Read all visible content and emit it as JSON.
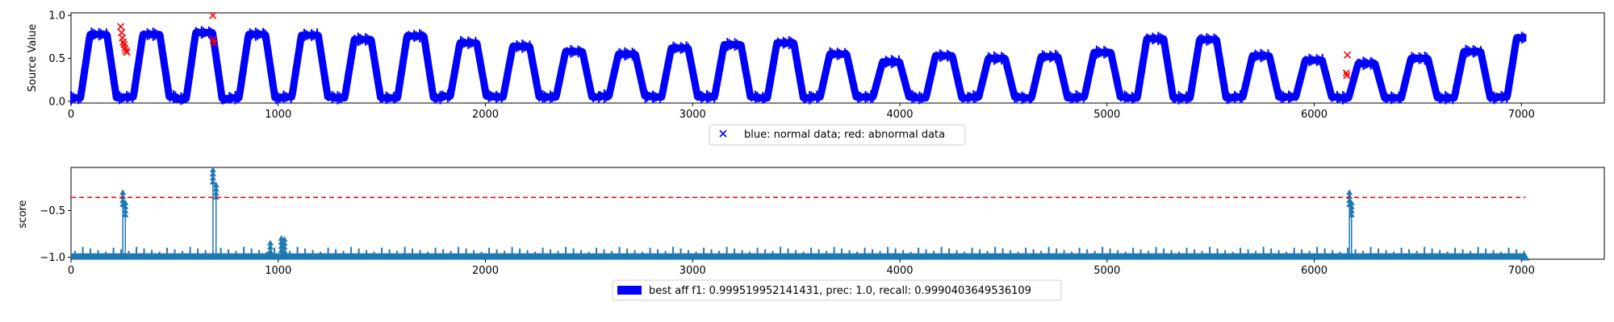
{
  "chart_data": [
    {
      "type": "scatter",
      "ylabel": "Source Value",
      "xlim": [
        0,
        7400
      ],
      "ylim": [
        -0.02,
        1.03
      ],
      "x_ticks": [
        0,
        1000,
        2000,
        3000,
        4000,
        5000,
        6000,
        7000
      ],
      "x_tick_labels": [
        "0",
        "1000",
        "2000",
        "3000",
        "4000",
        "5000",
        "6000",
        "7000"
      ],
      "y_ticks": [
        0.0,
        0.5,
        1.0
      ],
      "y_tick_labels": [
        "0.0",
        "0.5",
        "1.0"
      ],
      "legend": {
        "label": "blue: normal data; red: abnormal data",
        "placement": "below-center"
      },
      "series": [
        {
          "marker": "x",
          "color": "#0000ff",
          "period": 255,
          "x_range": [
            0,
            7020
          ],
          "cycles": [
            {
              "peak": 0.78,
              "low": 0.04
            },
            {
              "peak": 0.78,
              "low": 0.05
            },
            {
              "peak": 0.8,
              "low": 0.03
            },
            {
              "peak": 0.78,
              "low": 0.04
            },
            {
              "peak": 0.77,
              "low": 0.05
            },
            {
              "peak": 0.72,
              "low": 0.04
            },
            {
              "peak": 0.76,
              "low": 0.04
            },
            {
              "peak": 0.68,
              "low": 0.06
            },
            {
              "peak": 0.64,
              "low": 0.05
            },
            {
              "peak": 0.58,
              "low": 0.05
            },
            {
              "peak": 0.55,
              "low": 0.06
            },
            {
              "peak": 0.62,
              "low": 0.05
            },
            {
              "peak": 0.66,
              "low": 0.05
            },
            {
              "peak": 0.68,
              "low": 0.04
            },
            {
              "peak": 0.55,
              "low": 0.05
            },
            {
              "peak": 0.46,
              "low": 0.05
            },
            {
              "peak": 0.53,
              "low": 0.04
            },
            {
              "peak": 0.5,
              "low": 0.05
            },
            {
              "peak": 0.52,
              "low": 0.04
            },
            {
              "peak": 0.57,
              "low": 0.05
            },
            {
              "peak": 0.73,
              "low": 0.04
            },
            {
              "peak": 0.72,
              "low": 0.04
            },
            {
              "peak": 0.53,
              "low": 0.05
            },
            {
              "peak": 0.48,
              "low": 0.05
            },
            {
              "peak": 0.44,
              "low": 0.04
            },
            {
              "peak": 0.5,
              "low": 0.04
            },
            {
              "peak": 0.58,
              "low": 0.04
            },
            {
              "peak": 0.74,
              "low": 0.05
            },
            {
              "peak": 0.8,
              "low": 0.04
            }
          ]
        },
        {
          "marker": "x",
          "color": "#ff0000",
          "points": [
            {
              "x": 240,
              "y": 0.87
            },
            {
              "x": 244,
              "y": 0.8
            },
            {
              "x": 248,
              "y": 0.74
            },
            {
              "x": 252,
              "y": 0.69
            },
            {
              "x": 256,
              "y": 0.66
            },
            {
              "x": 260,
              "y": 0.62
            },
            {
              "x": 265,
              "y": 0.59
            },
            {
              "x": 270,
              "y": 0.57
            },
            {
              "x": 684,
              "y": 1.0
            },
            {
              "x": 686,
              "y": 0.72
            },
            {
              "x": 690,
              "y": 0.68
            },
            {
              "x": 6160,
              "y": 0.54
            },
            {
              "x": 6155,
              "y": 0.33
            },
            {
              "x": 6158,
              "y": 0.3
            }
          ]
        }
      ]
    },
    {
      "type": "line",
      "ylabel": "score",
      "xlim": [
        0,
        7400
      ],
      "ylim": [
        -1.02,
        -0.04
      ],
      "x_ticks": [
        0,
        1000,
        2000,
        3000,
        4000,
        5000,
        6000,
        7000
      ],
      "x_tick_labels": [
        "0",
        "1000",
        "2000",
        "3000",
        "4000",
        "5000",
        "6000",
        "7000"
      ],
      "y_ticks": [
        -1.0,
        -0.5
      ],
      "y_tick_labels": [
        "−1.0",
        "−0.5"
      ],
      "threshold": {
        "y": -0.36,
        "x_range": [
          0,
          7020
        ],
        "color": "#ff0000",
        "style": "dashed"
      },
      "baseline": -1.0,
      "spikes": [
        {
          "x": 250,
          "y": -0.29
        },
        {
          "x": 262,
          "y": -0.4
        },
        {
          "x": 685,
          "y": -0.05
        },
        {
          "x": 700,
          "y": -0.21
        },
        {
          "x": 962,
          "y": -0.83
        },
        {
          "x": 1015,
          "y": -0.78
        },
        {
          "x": 1030,
          "y": -0.79
        },
        {
          "x": 6170,
          "y": -0.29
        },
        {
          "x": 6180,
          "y": -0.4
        }
      ],
      "color": "#1f77b4",
      "legend": {
        "label": "best aff f1: 0.999519952141431, prec: 1.0, recall: 0.9990403649536109",
        "placement": "below-center",
        "patch_color": "#0000ff"
      }
    }
  ],
  "text": {
    "legend1": "blue: normal data; red: abnormal data",
    "legend2": "best aff f1: 0.999519952141431, prec: 1.0, recall: 0.9990403649536109",
    "ylabel1": "Source Value",
    "ylabel2": "score"
  }
}
